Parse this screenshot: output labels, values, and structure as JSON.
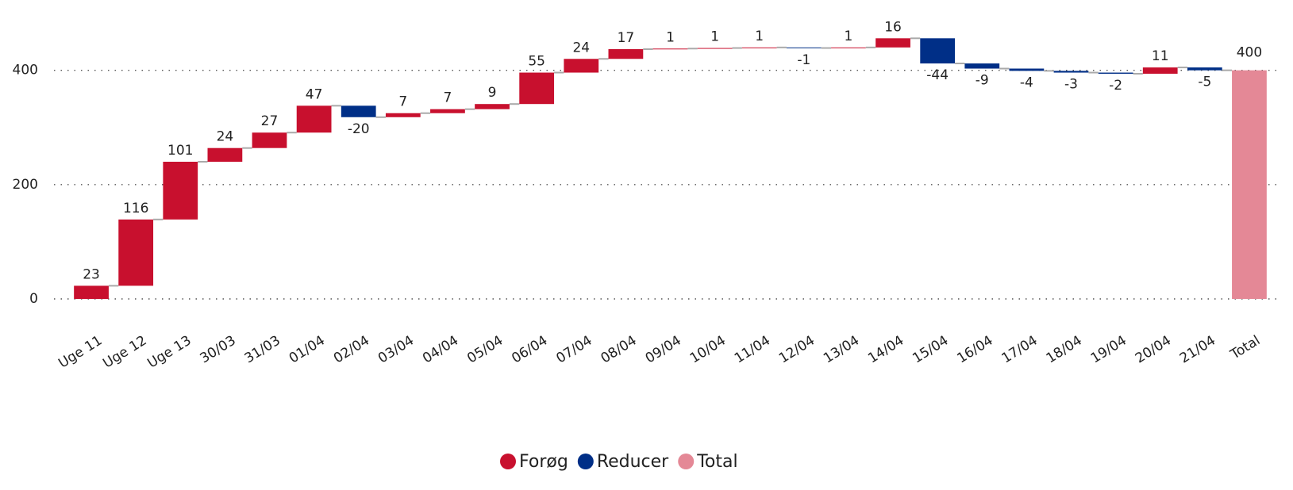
{
  "chart_data": {
    "type": "waterfall",
    "categories": [
      "Uge 11",
      "Uge 12",
      "Uge 13",
      "30/03",
      "31/03",
      "01/04",
      "02/04",
      "03/04",
      "04/04",
      "05/04",
      "06/04",
      "07/04",
      "08/04",
      "09/04",
      "10/04",
      "11/04",
      "12/04",
      "13/04",
      "14/04",
      "15/04",
      "16/04",
      "17/04",
      "18/04",
      "19/04",
      "20/04",
      "21/04"
    ],
    "values": [
      23,
      116,
      101,
      24,
      27,
      47,
      -20,
      7,
      7,
      9,
      55,
      24,
      17,
      1,
      1,
      1,
      -1,
      1,
      16,
      -44,
      -9,
      -4,
      -3,
      -2,
      11,
      -5
    ],
    "total_label": "Total",
    "total": 400,
    "legend": [
      {
        "name": "Forøg",
        "color": "#c8102e"
      },
      {
        "name": "Reducer",
        "color": "#002f87"
      },
      {
        "name": "Total",
        "color": "#e48896"
      }
    ],
    "ylim": [
      0,
      480
    ],
    "yticks": [
      0,
      200,
      400
    ],
    "grid": true
  }
}
